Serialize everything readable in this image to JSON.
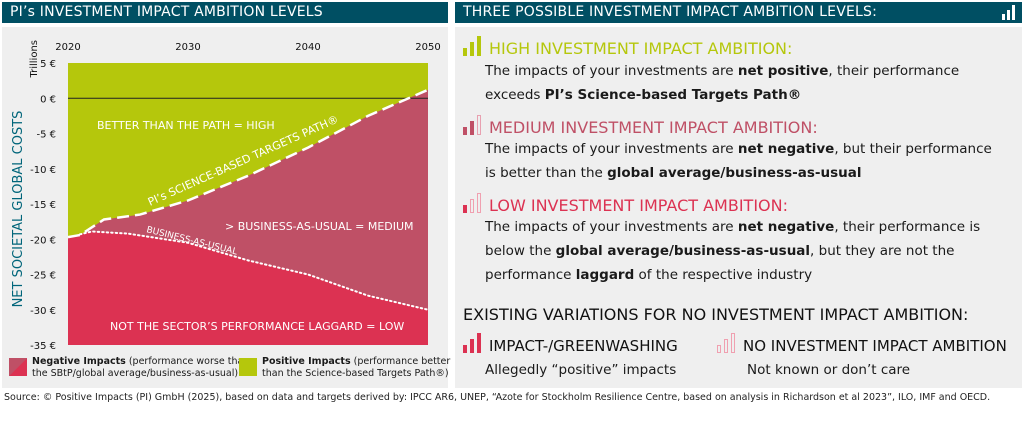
{
  "left": {
    "title": "PI’s INVESTMENT IMPACT AMBITION LEVELS",
    "legend": [
      {
        "bold": "Negative Impacts",
        "rest1": " (performance worse than",
        "rest2": "the SBtP/global average/business-as-usual)"
      },
      {
        "bold": "Positive Impacts",
        "rest1": " (performance better",
        "rest2": "than the Science-based Targets Path®)"
      }
    ]
  },
  "right": {
    "title": "THREE POSSIBLE INVESTMENT IMPACT AMBITION LEVELS:",
    "high": {
      "heading": "HIGH INVESTMENT IMPACT AMBITION:",
      "l1a": "The impacts of your investments are ",
      "l1b": "net positive",
      "l1c": ", their performance",
      "l2a": "exceeds ",
      "l2b": "PI’s Science-based Targets Path®"
    },
    "medium": {
      "heading": "MEDIUM INVESTMENT IMPACT AMBITION:",
      "l1a": "The impacts of your investments are ",
      "l1b": "net negative",
      "l1c": ", but their performance",
      "l2a": "is better than the ",
      "l2b": "global average/business-as-usual"
    },
    "low": {
      "heading": "LOW INVESTMENT IMPACT AMBITION:",
      "l1a": "The impacts of your investments are ",
      "l1b": "net negative",
      "l1c": ", their performance is",
      "l2a": "below the ",
      "l2b": "global average/business-as-usual",
      "l2c": ", but they are not the",
      "l3a": "performance ",
      "l3b": "laggard",
      "l3c": " of the respective industry"
    },
    "existing": {
      "heading": "EXISTING VARIATIONS FOR NO INVESTMENT IMPACT AMBITION:",
      "c1h": "IMPACT-/GREENWASHING",
      "c1b": "Allegedly “positive” impacts",
      "c2h": "NO INVESTMENT IMPACT AMBITION",
      "c2b": "Not known or don’t care"
    }
  },
  "source": "Source: © Positive Impacts (PI) GmbH (2025), based on data and targets derived by: IPCC AR6, UNEP, “Azote for Stockholm Resilience Centre, based on analysis in Richardson et al 2023”, ILO, IMF and OECD.",
  "colors": {
    "header": "#004f63",
    "green": "#b5c70c",
    "medium": "#bf5066",
    "low": "#dc3252",
    "panel": "#efefef"
  },
  "chart_data": {
    "type": "area",
    "ylabel": "NET SOCIETAL GLOBAL COSTS",
    "yunit": "Trillions",
    "xlim": [
      2020,
      2050
    ],
    "ylim": [
      -35,
      5
    ],
    "xticks": [
      "2020",
      "2030",
      "2040",
      "2050"
    ],
    "yticks": [
      "5 €",
      "0 €",
      "-5 €",
      "-10 €",
      "-15 €",
      "-20 €",
      "-25 €",
      "-30 €",
      "-35 €"
    ],
    "sbtp_path": {
      "name": "PI’s SCIENCE-BASED TARGETS PATH®",
      "x": [
        2020,
        2021,
        2023,
        2026,
        2030,
        2035,
        2040,
        2045,
        2050
      ],
      "y": [
        -19.7,
        -19.4,
        -17.2,
        -16.5,
        -14.5,
        -11,
        -7,
        -2.5,
        1.2
      ]
    },
    "business_as_usual": {
      "name": "BUSINESS-AS-USUAL",
      "x": [
        2021,
        2022,
        2025,
        2030,
        2035,
        2040,
        2045,
        2050
      ],
      "y": [
        -19.3,
        -18.9,
        -19.2,
        -20.5,
        -23,
        -25,
        -28,
        -30
      ]
    },
    "regions": [
      "BETTER THAN THE PATH = HIGH",
      "> BUSINESS-AS-USUAL = MEDIUM",
      "NOT THE SECTOR’S PERFORMANCE LAGGARD = LOW"
    ]
  }
}
